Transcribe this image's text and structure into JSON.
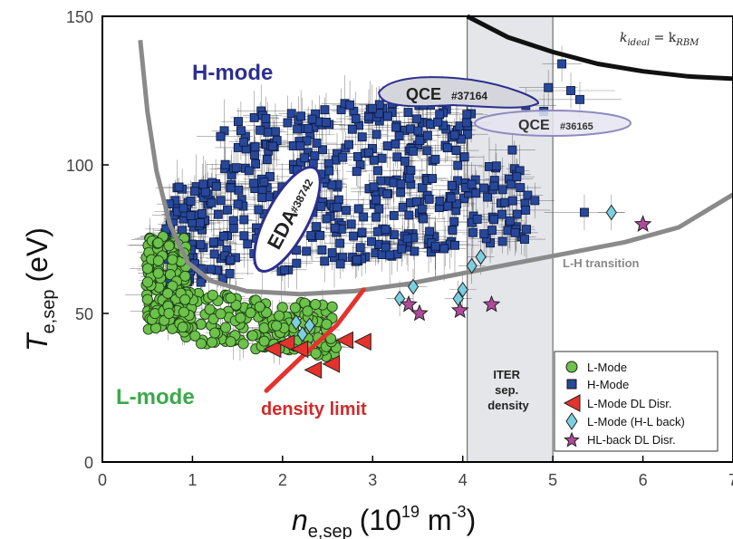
{
  "chart_data": {
    "type": "scatter",
    "xlim": [
      0,
      7
    ],
    "ylim": [
      0,
      150
    ],
    "x_ticks": [
      "0",
      "1",
      "2",
      "3",
      "4",
      "5",
      "6",
      "7"
    ],
    "y_ticks": [
      "0",
      "50",
      "100",
      "150"
    ],
    "x_tick_values": [
      0,
      1,
      2,
      3,
      4,
      5,
      6,
      7
    ],
    "y_tick_values": [
      0,
      50,
      100,
      150
    ],
    "xlabel": {
      "main": "n",
      "sub": "e,sep",
      "units": "(10",
      "exp": "19",
      "units2": " m",
      "exp2": "-3",
      "close": ")"
    },
    "ylabel": {
      "main": "T",
      "sub": "e,sep",
      "units": "(eV)"
    },
    "iter_band": {
      "x_from": 4.05,
      "x_to": 5.0,
      "label_lines": [
        "ITER",
        "sep.",
        "density"
      ],
      "color": "#e4e6ea"
    },
    "colors": {
      "l_mode": "#6cc24a",
      "h_mode": "#27489a",
      "l_mode_dl": "#e5322d",
      "l_mode_hl_back": "#7ccfe0",
      "hl_back_dl": "#b04a9a",
      "density_limit": "#e5322d",
      "lh_curve": "#8a8a8a",
      "ideal_curve": "#111111",
      "h_label": "#2d2f8f",
      "l_label": "#3aa94a"
    },
    "annotations": {
      "h_mode": "H-mode",
      "l_mode": "L-mode",
      "density_limit": "density limit",
      "lh_transition": "L-H transition",
      "eda": "EDA",
      "eda_shot": "#38742",
      "qce1": "QCE",
      "qce1_shot": "#37164",
      "qce2": "QCE",
      "qce2_shot": "#36165",
      "kideal_k": "k",
      "kideal_sub": "ideal",
      "kideal_eq": " = k",
      "kideal_sub2": "RBM"
    },
    "legend": {
      "placement": "bottom-right",
      "entries": [
        "L-Mode",
        "H-Mode",
        "L-Mode DL Disr.",
        "L-Mode (H-L back)",
        "HL-back DL Disr."
      ]
    },
    "lh_curve": [
      [
        0.42,
        142
      ],
      [
        0.5,
        118
      ],
      [
        0.6,
        98
      ],
      [
        0.75,
        80
      ],
      [
        0.95,
        67
      ],
      [
        1.2,
        61
      ],
      [
        1.6,
        57.5
      ],
      [
        2.2,
        56.5
      ],
      [
        2.8,
        57.5
      ],
      [
        3.4,
        60
      ],
      [
        4.0,
        63.5
      ],
      [
        4.6,
        67
      ],
      [
        5.2,
        70.5
      ],
      [
        5.8,
        74
      ],
      [
        6.4,
        79
      ],
      [
        7.0,
        90
      ]
    ],
    "ideal_curve": [
      [
        4.05,
        150
      ],
      [
        4.5,
        143
      ],
      [
        5.0,
        138
      ],
      [
        5.5,
        134
      ],
      [
        6.0,
        131.5
      ],
      [
        6.5,
        129.8
      ],
      [
        7.0,
        129
      ]
    ],
    "density_limit_line": [
      [
        1.82,
        24
      ],
      [
        2.2,
        35
      ],
      [
        2.6,
        46
      ],
      [
        2.9,
        58
      ]
    ],
    "l_mode_dl_points": [
      [
        1.9,
        38
      ],
      [
        2.05,
        40
      ],
      [
        2.2,
        38
      ],
      [
        2.35,
        31
      ],
      [
        2.55,
        33
      ],
      [
        2.7,
        41
      ],
      [
        2.9,
        40.5
      ]
    ],
    "hl_back_points": [
      [
        2.15,
        47
      ],
      [
        2.22,
        43
      ],
      [
        2.3,
        46
      ],
      [
        3.3,
        55
      ],
      [
        3.45,
        59
      ],
      [
        3.95,
        55
      ],
      [
        4.0,
        58
      ],
      [
        4.1,
        66
      ],
      [
        4.2,
        69
      ],
      [
        5.65,
        84
      ]
    ],
    "hl_back_dl_points": [
      [
        3.4,
        53
      ],
      [
        3.52,
        50
      ],
      [
        3.97,
        51
      ],
      [
        4.32,
        53
      ],
      [
        6.0,
        80
      ]
    ],
    "h_mode_outliers": [
      [
        4.7,
        120
      ],
      [
        4.9,
        118
      ],
      [
        5.1,
        134
      ],
      [
        5.2,
        125
      ],
      [
        5.3,
        122
      ],
      [
        4.95,
        126
      ],
      [
        5.35,
        84
      ],
      [
        4.55,
        105
      ],
      [
        4.6,
        96
      ],
      [
        4.8,
        88
      ]
    ]
  }
}
